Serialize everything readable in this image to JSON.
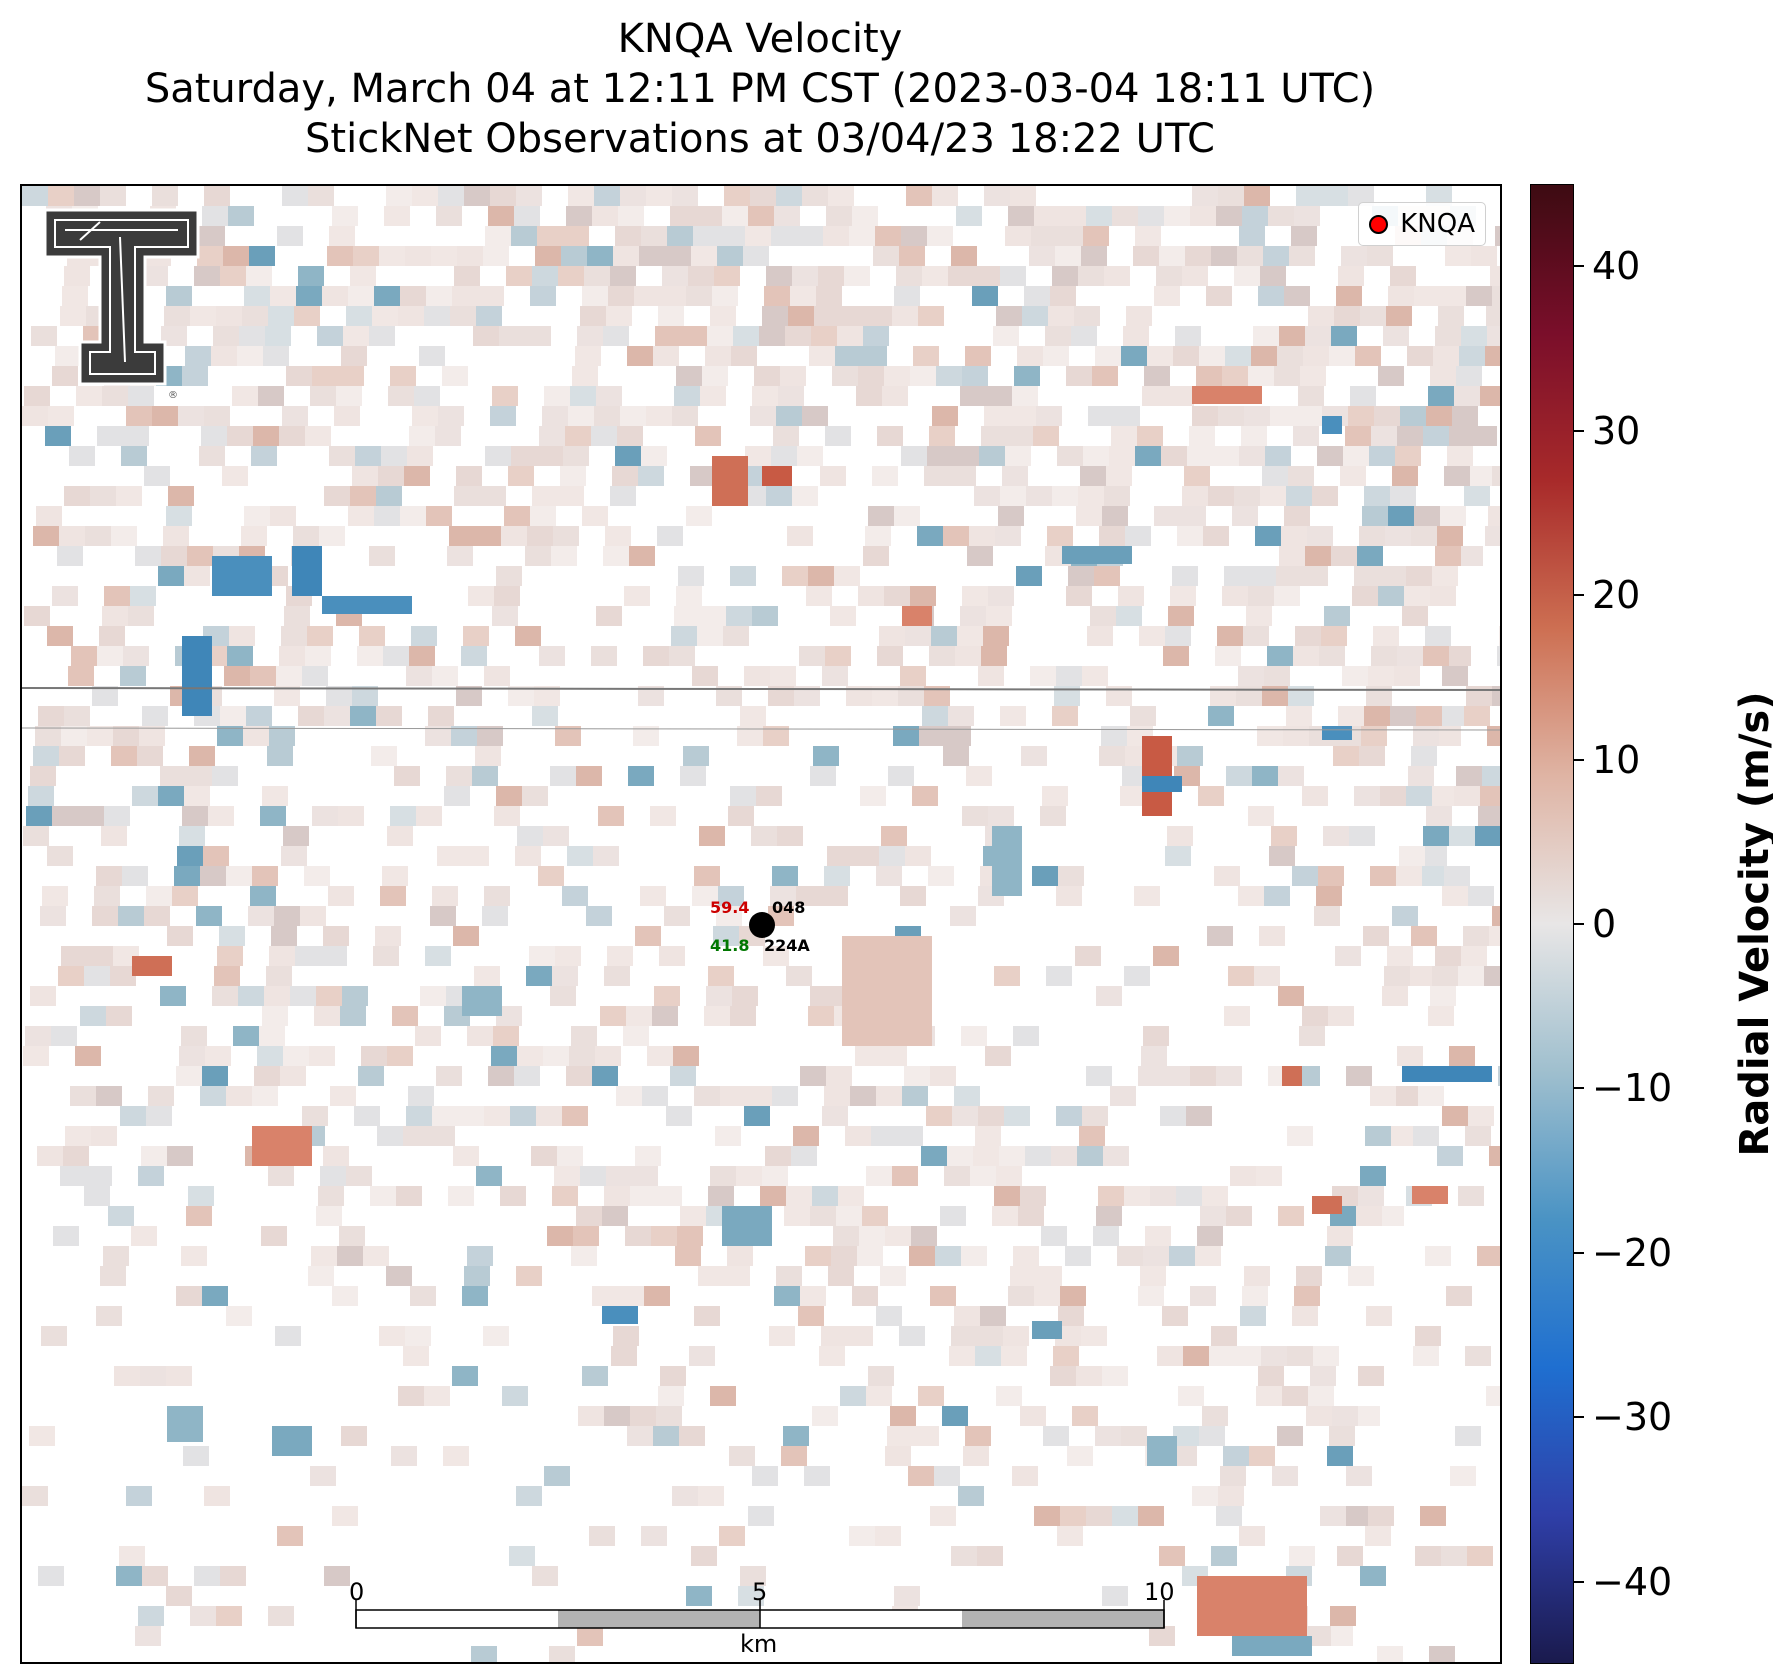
{
  "title": {
    "line1": "KNQA Velocity",
    "line2": "Saturday, March 04 at 12:11 PM CST (2023-03-04 18:11 UTC)",
    "line3": "StickNet Observations at 03/04/23 18:22 UTC"
  },
  "legend": {
    "label": "KNQA",
    "marker_color": "#ff0000"
  },
  "logo": {
    "name": "texas-tech-double-t-logo",
    "registered_mark": "®"
  },
  "station": {
    "id_upper": "048",
    "id_lower": "224A",
    "value_red": "59.4",
    "value_green": "41.8",
    "value_red_color": "#cc0000",
    "value_green_color": "#007700"
  },
  "scale_bar": {
    "unit": "km",
    "ticks": [
      "0",
      "5",
      "10"
    ]
  },
  "colorbar": {
    "title": "Radial Velocity (m/s)",
    "min": -45,
    "max": 45,
    "ticks": [
      {
        "value": 40,
        "label": "40"
      },
      {
        "value": 30,
        "label": "30"
      },
      {
        "value": 20,
        "label": "20"
      },
      {
        "value": 10,
        "label": "10"
      },
      {
        "value": 0,
        "label": "0"
      },
      {
        "value": -10,
        "label": "−10"
      },
      {
        "value": -20,
        "label": "−20"
      },
      {
        "value": -30,
        "label": "−30"
      },
      {
        "value": -40,
        "label": "−40"
      }
    ],
    "colors": [
      "#1a1a4d",
      "#2f3fa8",
      "#1f6fd0",
      "#4a93c4",
      "#9fbfce",
      "#e8e6e6",
      "#dfb4a4",
      "#cd6f52",
      "#a82a2a",
      "#7a0e2a",
      "#3d0b12"
    ]
  }
}
